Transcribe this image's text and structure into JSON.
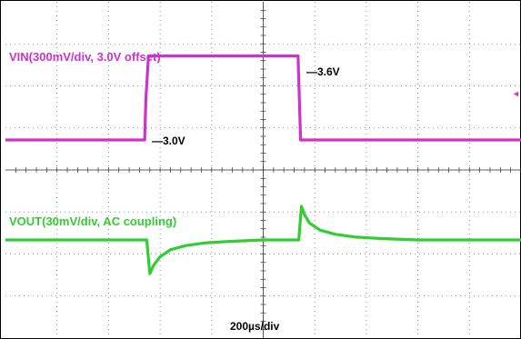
{
  "chart_data": {
    "type": "line",
    "timebase_label": "200µs/div",
    "x_units": "µs",
    "x_range": [
      0,
      2000
    ],
    "series": [
      {
        "name": "VIN(300mV/div, 3.0V offset)",
        "color": "#cc33cc",
        "units": "V",
        "x": [
          0,
          540,
          545,
          555,
          1135,
          1140,
          1145,
          2000
        ],
        "y": [
          3.0,
          3.0,
          3.3,
          3.6,
          3.6,
          3.3,
          3.0,
          3.0
        ],
        "level_labels": [
          "—3.6V",
          "—3.0V"
        ]
      },
      {
        "name": "VOUT(30mV/div, AC coupling)",
        "color": "#33cc33",
        "units": "mV (AC)",
        "x": [
          0,
          548,
          560,
          575,
          600,
          640,
          700,
          780,
          880,
          1000,
          1138,
          1148,
          1160,
          1180,
          1220,
          1280,
          1360,
          1460,
          1600,
          2000
        ],
        "y": [
          0,
          0,
          -24,
          -18,
          -12,
          -7,
          -4,
          -2,
          -1,
          0,
          0,
          24,
          18,
          12,
          7,
          4,
          2,
          1,
          0,
          0
        ]
      }
    ],
    "marker": "◄"
  }
}
